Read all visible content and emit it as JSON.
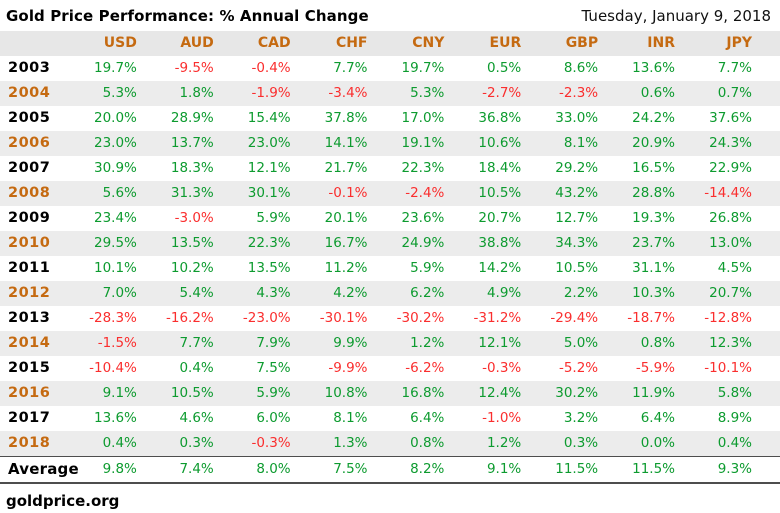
{
  "header": {
    "title": "Gold Price Performance: % Annual Change",
    "date": "Tuesday, January 9, 2018"
  },
  "chart_data": {
    "type": "table",
    "title": "Gold Price Performance: % Annual Change",
    "unit": "%",
    "columns": [
      "USD",
      "AUD",
      "CAD",
      "CHF",
      "CNY",
      "EUR",
      "GBP",
      "INR",
      "JPY"
    ],
    "rows": [
      {
        "year": "2003",
        "values": [
          19.7,
          -9.5,
          -0.4,
          7.7,
          19.7,
          0.5,
          8.6,
          13.6,
          7.7
        ]
      },
      {
        "year": "2004",
        "values": [
          5.3,
          1.8,
          -1.9,
          -3.4,
          5.3,
          -2.7,
          -2.3,
          0.6,
          0.7
        ]
      },
      {
        "year": "2005",
        "values": [
          20.0,
          28.9,
          15.4,
          37.8,
          17.0,
          36.8,
          33.0,
          24.2,
          37.6
        ]
      },
      {
        "year": "2006",
        "values": [
          23.0,
          13.7,
          23.0,
          14.1,
          19.1,
          10.6,
          8.1,
          20.9,
          24.3
        ]
      },
      {
        "year": "2007",
        "values": [
          30.9,
          18.3,
          12.1,
          21.7,
          22.3,
          18.4,
          29.2,
          16.5,
          22.9
        ]
      },
      {
        "year": "2008",
        "values": [
          5.6,
          31.3,
          30.1,
          -0.1,
          -2.4,
          10.5,
          43.2,
          28.8,
          -14.4
        ]
      },
      {
        "year": "2009",
        "values": [
          23.4,
          -3.0,
          5.9,
          20.1,
          23.6,
          20.7,
          12.7,
          19.3,
          26.8
        ]
      },
      {
        "year": "2010",
        "values": [
          29.5,
          13.5,
          22.3,
          16.7,
          24.9,
          38.8,
          34.3,
          23.7,
          13.0
        ]
      },
      {
        "year": "2011",
        "values": [
          10.1,
          10.2,
          13.5,
          11.2,
          5.9,
          14.2,
          10.5,
          31.1,
          4.5
        ]
      },
      {
        "year": "2012",
        "values": [
          7.0,
          5.4,
          4.3,
          4.2,
          6.2,
          4.9,
          2.2,
          10.3,
          20.7
        ]
      },
      {
        "year": "2013",
        "values": [
          -28.3,
          -16.2,
          -23.0,
          -30.1,
          -30.2,
          -31.2,
          -29.4,
          -18.7,
          -12.8
        ]
      },
      {
        "year": "2014",
        "values": [
          -1.5,
          7.7,
          7.9,
          9.9,
          1.2,
          12.1,
          5.0,
          0.8,
          12.3
        ]
      },
      {
        "year": "2015",
        "values": [
          -10.4,
          0.4,
          7.5,
          -9.9,
          -6.2,
          -0.3,
          -5.2,
          -5.9,
          -10.1
        ]
      },
      {
        "year": "2016",
        "values": [
          9.1,
          10.5,
          5.9,
          10.8,
          16.8,
          12.4,
          30.2,
          11.9,
          5.8
        ]
      },
      {
        "year": "2017",
        "values": [
          13.6,
          4.6,
          6.0,
          8.1,
          6.4,
          -1.0,
          3.2,
          6.4,
          8.9
        ]
      },
      {
        "year": "2018",
        "values": [
          0.4,
          0.3,
          -0.3,
          1.3,
          0.8,
          1.2,
          0.3,
          0.0,
          0.4
        ]
      }
    ],
    "average": {
      "label": "Average",
      "values": [
        9.8,
        7.4,
        8.0,
        7.5,
        8.2,
        9.1,
        11.5,
        11.5,
        9.3
      ]
    }
  },
  "footer": {
    "source": "goldprice.org"
  },
  "colors": {
    "positive": "#0d9b2f",
    "negative": "#fa2e2e",
    "accent": "#c56a11",
    "header_bg": "#e7e7e7",
    "stripe": "#ececec"
  }
}
